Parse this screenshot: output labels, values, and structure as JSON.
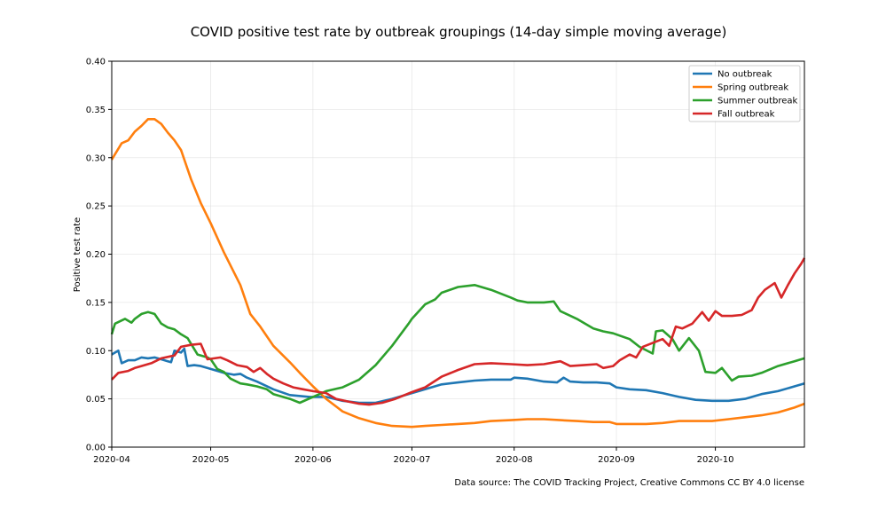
{
  "chart_data": {
    "type": "line",
    "title": "COVID positive test rate by outbreak groupings (14-day simple moving average)",
    "xlabel": "",
    "ylabel": "Positive test rate",
    "source": "Data source: The COVID Tracking Project, Creative Commons CC BY 4.0 license",
    "x_range": [
      "2020-04-01",
      "2020-10-28"
    ],
    "ylim": [
      0,
      0.4
    ],
    "grid": true,
    "legend_position": "top-right",
    "x_ticks": [
      {
        "date": "2020-04-01",
        "label": "2020-04"
      },
      {
        "date": "2020-05-01",
        "label": "2020-05"
      },
      {
        "date": "2020-06-01",
        "label": "2020-06"
      },
      {
        "date": "2020-07-01",
        "label": "2020-07"
      },
      {
        "date": "2020-08-01",
        "label": "2020-08"
      },
      {
        "date": "2020-09-01",
        "label": "2020-09"
      },
      {
        "date": "2020-10-01",
        "label": "2020-10"
      }
    ],
    "y_ticks": [
      {
        "value": 0.0,
        "label": "0.00"
      },
      {
        "value": 0.05,
        "label": "0.05"
      },
      {
        "value": 0.1,
        "label": "0.10"
      },
      {
        "value": 0.15,
        "label": "0.15"
      },
      {
        "value": 0.2,
        "label": "0.20"
      },
      {
        "value": 0.25,
        "label": "0.25"
      },
      {
        "value": 0.3,
        "label": "0.30"
      },
      {
        "value": 0.35,
        "label": "0.35"
      },
      {
        "value": 0.4,
        "label": "0.40"
      }
    ],
    "series": [
      {
        "name": "No outbreak",
        "color": "#1f77b4",
        "points": [
          [
            "2020-04-01",
            0.096
          ],
          [
            "2020-04-03",
            0.1
          ],
          [
            "2020-04-04",
            0.087
          ],
          [
            "2020-04-06",
            0.09
          ],
          [
            "2020-04-08",
            0.09
          ],
          [
            "2020-04-10",
            0.093
          ],
          [
            "2020-04-12",
            0.092
          ],
          [
            "2020-04-14",
            0.093
          ],
          [
            "2020-04-16",
            0.091
          ],
          [
            "2020-04-18",
            0.089
          ],
          [
            "2020-04-19",
            0.088
          ],
          [
            "2020-04-20",
            0.1
          ],
          [
            "2020-04-22",
            0.098
          ],
          [
            "2020-04-23",
            0.102
          ],
          [
            "2020-04-24",
            0.084
          ],
          [
            "2020-04-26",
            0.085
          ],
          [
            "2020-04-28",
            0.084
          ],
          [
            "2020-05-01",
            0.081
          ],
          [
            "2020-05-05",
            0.077
          ],
          [
            "2020-05-08",
            0.075
          ],
          [
            "2020-05-10",
            0.076
          ],
          [
            "2020-05-12",
            0.072
          ],
          [
            "2020-05-15",
            0.068
          ],
          [
            "2020-05-20",
            0.06
          ],
          [
            "2020-05-25",
            0.054
          ],
          [
            "2020-05-31",
            0.052
          ],
          [
            "2020-06-05",
            0.052
          ],
          [
            "2020-06-10",
            0.048
          ],
          [
            "2020-06-15",
            0.046
          ],
          [
            "2020-06-20",
            0.046
          ],
          [
            "2020-06-25",
            0.05
          ],
          [
            "2020-07-01",
            0.056
          ],
          [
            "2020-07-05",
            0.06
          ],
          [
            "2020-07-10",
            0.065
          ],
          [
            "2020-07-15",
            0.067
          ],
          [
            "2020-07-20",
            0.069
          ],
          [
            "2020-07-25",
            0.07
          ],
          [
            "2020-07-31",
            0.07
          ],
          [
            "2020-08-01",
            0.072
          ],
          [
            "2020-08-05",
            0.071
          ],
          [
            "2020-08-10",
            0.068
          ],
          [
            "2020-08-14",
            0.067
          ],
          [
            "2020-08-16",
            0.072
          ],
          [
            "2020-08-18",
            0.068
          ],
          [
            "2020-08-22",
            0.067
          ],
          [
            "2020-08-26",
            0.067
          ],
          [
            "2020-08-30",
            0.066
          ],
          [
            "2020-09-01",
            0.062
          ],
          [
            "2020-09-05",
            0.06
          ],
          [
            "2020-09-10",
            0.059
          ],
          [
            "2020-09-15",
            0.056
          ],
          [
            "2020-09-20",
            0.052
          ],
          [
            "2020-09-25",
            0.049
          ],
          [
            "2020-09-30",
            0.048
          ],
          [
            "2020-10-05",
            0.048
          ],
          [
            "2020-10-10",
            0.05
          ],
          [
            "2020-10-15",
            0.055
          ],
          [
            "2020-10-20",
            0.058
          ],
          [
            "2020-10-25",
            0.063
          ],
          [
            "2020-10-28",
            0.066
          ]
        ]
      },
      {
        "name": "Spring outbreak",
        "color": "#ff7f0e",
        "points": [
          [
            "2020-04-01",
            0.298
          ],
          [
            "2020-04-04",
            0.315
          ],
          [
            "2020-04-06",
            0.318
          ],
          [
            "2020-04-08",
            0.327
          ],
          [
            "2020-04-10",
            0.333
          ],
          [
            "2020-04-12",
            0.34
          ],
          [
            "2020-04-14",
            0.34
          ],
          [
            "2020-04-16",
            0.335
          ],
          [
            "2020-04-18",
            0.326
          ],
          [
            "2020-04-20",
            0.318
          ],
          [
            "2020-04-22",
            0.308
          ],
          [
            "2020-04-25",
            0.278
          ],
          [
            "2020-04-28",
            0.253
          ],
          [
            "2020-05-01",
            0.232
          ],
          [
            "2020-05-05",
            0.202
          ],
          [
            "2020-05-10",
            0.168
          ],
          [
            "2020-05-13",
            0.138
          ],
          [
            "2020-05-16",
            0.125
          ],
          [
            "2020-05-20",
            0.105
          ],
          [
            "2020-05-25",
            0.088
          ],
          [
            "2020-05-28",
            0.077
          ],
          [
            "2020-06-01",
            0.063
          ],
          [
            "2020-06-05",
            0.05
          ],
          [
            "2020-06-10",
            0.037
          ],
          [
            "2020-06-15",
            0.03
          ],
          [
            "2020-06-20",
            0.025
          ],
          [
            "2020-06-25",
            0.022
          ],
          [
            "2020-07-01",
            0.021
          ],
          [
            "2020-07-05",
            0.022
          ],
          [
            "2020-07-10",
            0.023
          ],
          [
            "2020-07-15",
            0.024
          ],
          [
            "2020-07-20",
            0.025
          ],
          [
            "2020-07-25",
            0.027
          ],
          [
            "2020-07-31",
            0.028
          ],
          [
            "2020-08-05",
            0.029
          ],
          [
            "2020-08-10",
            0.029
          ],
          [
            "2020-08-15",
            0.028
          ],
          [
            "2020-08-20",
            0.027
          ],
          [
            "2020-08-25",
            0.026
          ],
          [
            "2020-08-30",
            0.026
          ],
          [
            "2020-09-01",
            0.024
          ],
          [
            "2020-09-05",
            0.024
          ],
          [
            "2020-09-10",
            0.024
          ],
          [
            "2020-09-15",
            0.025
          ],
          [
            "2020-09-20",
            0.027
          ],
          [
            "2020-09-25",
            0.027
          ],
          [
            "2020-09-30",
            0.027
          ],
          [
            "2020-10-05",
            0.029
          ],
          [
            "2020-10-10",
            0.031
          ],
          [
            "2020-10-15",
            0.033
          ],
          [
            "2020-10-20",
            0.036
          ],
          [
            "2020-10-25",
            0.041
          ],
          [
            "2020-10-28",
            0.045
          ]
        ]
      },
      {
        "name": "Summer outbreak",
        "color": "#2ca02c",
        "points": [
          [
            "2020-04-01",
            0.117
          ],
          [
            "2020-04-02",
            0.128
          ],
          [
            "2020-04-05",
            0.133
          ],
          [
            "2020-04-07",
            0.129
          ],
          [
            "2020-04-08",
            0.133
          ],
          [
            "2020-04-10",
            0.138
          ],
          [
            "2020-04-12",
            0.14
          ],
          [
            "2020-04-14",
            0.138
          ],
          [
            "2020-04-16",
            0.128
          ],
          [
            "2020-04-18",
            0.124
          ],
          [
            "2020-04-20",
            0.122
          ],
          [
            "2020-04-22",
            0.117
          ],
          [
            "2020-04-24",
            0.113
          ],
          [
            "2020-04-27",
            0.096
          ],
          [
            "2020-04-30",
            0.093
          ],
          [
            "2020-05-01",
            0.091
          ],
          [
            "2020-05-03",
            0.081
          ],
          [
            "2020-05-05",
            0.078
          ],
          [
            "2020-05-07",
            0.071
          ],
          [
            "2020-05-10",
            0.066
          ],
          [
            "2020-05-12",
            0.065
          ],
          [
            "2020-05-15",
            0.063
          ],
          [
            "2020-05-18",
            0.06
          ],
          [
            "2020-05-20",
            0.055
          ],
          [
            "2020-05-25",
            0.05
          ],
          [
            "2020-05-28",
            0.046
          ],
          [
            "2020-06-01",
            0.052
          ],
          [
            "2020-06-05",
            0.058
          ],
          [
            "2020-06-10",
            0.062
          ],
          [
            "2020-06-15",
            0.07
          ],
          [
            "2020-06-20",
            0.085
          ],
          [
            "2020-06-25",
            0.105
          ],
          [
            "2020-06-30",
            0.128
          ],
          [
            "2020-07-01",
            0.133
          ],
          [
            "2020-07-05",
            0.148
          ],
          [
            "2020-07-08",
            0.153
          ],
          [
            "2020-07-10",
            0.16
          ],
          [
            "2020-07-15",
            0.166
          ],
          [
            "2020-07-20",
            0.168
          ],
          [
            "2020-07-25",
            0.163
          ],
          [
            "2020-07-31",
            0.155
          ],
          [
            "2020-08-02",
            0.152
          ],
          [
            "2020-08-05",
            0.15
          ],
          [
            "2020-08-10",
            0.15
          ],
          [
            "2020-08-13",
            0.151
          ],
          [
            "2020-08-15",
            0.141
          ],
          [
            "2020-08-20",
            0.133
          ],
          [
            "2020-08-25",
            0.123
          ],
          [
            "2020-08-28",
            0.12
          ],
          [
            "2020-08-31",
            0.118
          ],
          [
            "2020-09-05",
            0.112
          ],
          [
            "2020-09-08",
            0.104
          ],
          [
            "2020-09-12",
            0.097
          ],
          [
            "2020-09-13",
            0.12
          ],
          [
            "2020-09-15",
            0.121
          ],
          [
            "2020-09-18",
            0.112
          ],
          [
            "2020-09-20",
            0.1
          ],
          [
            "2020-09-23",
            0.113
          ],
          [
            "2020-09-26",
            0.1
          ],
          [
            "2020-09-28",
            0.078
          ],
          [
            "2020-10-01",
            0.077
          ],
          [
            "2020-10-03",
            0.082
          ],
          [
            "2020-10-06",
            0.069
          ],
          [
            "2020-10-08",
            0.073
          ],
          [
            "2020-10-12",
            0.074
          ],
          [
            "2020-10-15",
            0.077
          ],
          [
            "2020-10-20",
            0.084
          ],
          [
            "2020-10-25",
            0.089
          ],
          [
            "2020-10-28",
            0.092
          ]
        ]
      },
      {
        "name": "Fall outbreak",
        "color": "#d62728",
        "points": [
          [
            "2020-04-01",
            0.07
          ],
          [
            "2020-04-03",
            0.077
          ],
          [
            "2020-04-06",
            0.079
          ],
          [
            "2020-04-08",
            0.082
          ],
          [
            "2020-04-10",
            0.084
          ],
          [
            "2020-04-13",
            0.087
          ],
          [
            "2020-04-16",
            0.092
          ],
          [
            "2020-04-20",
            0.095
          ],
          [
            "2020-04-22",
            0.104
          ],
          [
            "2020-04-25",
            0.106
          ],
          [
            "2020-04-28",
            0.107
          ],
          [
            "2020-04-30",
            0.091
          ],
          [
            "2020-05-04",
            0.093
          ],
          [
            "2020-05-06",
            0.09
          ],
          [
            "2020-05-09",
            0.085
          ],
          [
            "2020-05-12",
            0.083
          ],
          [
            "2020-05-14",
            0.078
          ],
          [
            "2020-05-16",
            0.082
          ],
          [
            "2020-05-18",
            0.076
          ],
          [
            "2020-05-20",
            0.071
          ],
          [
            "2020-05-23",
            0.066
          ],
          [
            "2020-05-26",
            0.062
          ],
          [
            "2020-05-29",
            0.06
          ],
          [
            "2020-06-01",
            0.058
          ],
          [
            "2020-06-05",
            0.056
          ],
          [
            "2020-06-08",
            0.05
          ],
          [
            "2020-06-12",
            0.047
          ],
          [
            "2020-06-15",
            0.045
          ],
          [
            "2020-06-18",
            0.044
          ],
          [
            "2020-06-22",
            0.046
          ],
          [
            "2020-06-26",
            0.05
          ],
          [
            "2020-07-01",
            0.057
          ],
          [
            "2020-07-05",
            0.062
          ],
          [
            "2020-07-10",
            0.073
          ],
          [
            "2020-07-15",
            0.08
          ],
          [
            "2020-07-20",
            0.086
          ],
          [
            "2020-07-25",
            0.087
          ],
          [
            "2020-07-31",
            0.086
          ],
          [
            "2020-08-05",
            0.085
          ],
          [
            "2020-08-10",
            0.086
          ],
          [
            "2020-08-15",
            0.089
          ],
          [
            "2020-08-18",
            0.084
          ],
          [
            "2020-08-22",
            0.085
          ],
          [
            "2020-08-26",
            0.086
          ],
          [
            "2020-08-28",
            0.082
          ],
          [
            "2020-08-31",
            0.084
          ],
          [
            "2020-09-02",
            0.09
          ],
          [
            "2020-09-05",
            0.096
          ],
          [
            "2020-09-07",
            0.093
          ],
          [
            "2020-09-09",
            0.104
          ],
          [
            "2020-09-12",
            0.108
          ],
          [
            "2020-09-15",
            0.112
          ],
          [
            "2020-09-17",
            0.105
          ],
          [
            "2020-09-19",
            0.125
          ],
          [
            "2020-09-21",
            0.123
          ],
          [
            "2020-09-24",
            0.128
          ],
          [
            "2020-09-27",
            0.14
          ],
          [
            "2020-09-29",
            0.131
          ],
          [
            "2020-10-01",
            0.141
          ],
          [
            "2020-10-03",
            0.136
          ],
          [
            "2020-10-06",
            0.136
          ],
          [
            "2020-10-09",
            0.137
          ],
          [
            "2020-10-12",
            0.142
          ],
          [
            "2020-10-14",
            0.155
          ],
          [
            "2020-10-16",
            0.163
          ],
          [
            "2020-10-19",
            0.17
          ],
          [
            "2020-10-21",
            0.155
          ],
          [
            "2020-10-23",
            0.168
          ],
          [
            "2020-10-25",
            0.18
          ],
          [
            "2020-10-27",
            0.19
          ],
          [
            "2020-10-28",
            0.196
          ]
        ]
      }
    ]
  }
}
